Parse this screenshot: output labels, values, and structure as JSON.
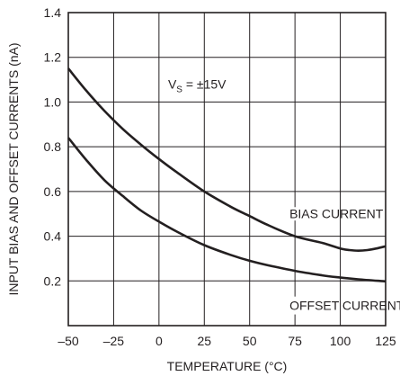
{
  "chart_data": {
    "type": "line",
    "xlabel": "TEMPERATURE (°C)",
    "ylabel": "INPUT BIAS AND OFFSET CURRENTS (nA)",
    "xlim": [
      -50,
      125
    ],
    "ylim": [
      0,
      1.4
    ],
    "x_ticks": [
      -50,
      -25,
      0,
      25,
      50,
      75,
      100,
      125
    ],
    "x_tick_labels": [
      "–50",
      "–25",
      "0",
      "25",
      "50",
      "75",
      "100",
      "125"
    ],
    "y_ticks": [
      0.2,
      0.4,
      0.6,
      0.8,
      1.0,
      1.2,
      1.4
    ],
    "y_tick_labels": [
      "0.2",
      "0.4",
      "0.6",
      "0.8",
      "1.0",
      "1.2",
      "1.4"
    ],
    "grid": true,
    "annotation": {
      "prefix": "V",
      "subscript": "S",
      "suffix": " = ±15V",
      "x": 5,
      "y": 1.08
    },
    "series": [
      {
        "name": "BIAS CURRENT",
        "label_x": 72,
        "label_y": 0.5,
        "x": [
          -50,
          -40,
          -30,
          -20,
          -10,
          0,
          10,
          25,
          40,
          50,
          60,
          75,
          90,
          100,
          105,
          110,
          115,
          120,
          125
        ],
        "values": [
          1.15,
          1.05,
          0.96,
          0.88,
          0.81,
          0.745,
          0.685,
          0.6,
          0.53,
          0.49,
          0.45,
          0.4,
          0.37,
          0.345,
          0.338,
          0.335,
          0.338,
          0.345,
          0.355
        ]
      },
      {
        "name": "OFFSET CURRENT",
        "label_x": 72,
        "label_y": 0.09,
        "x": [
          -50,
          -40,
          -30,
          -20,
          -10,
          0,
          10,
          25,
          40,
          50,
          60,
          75,
          90,
          100,
          110,
          125
        ],
        "values": [
          0.84,
          0.74,
          0.65,
          0.58,
          0.515,
          0.465,
          0.42,
          0.36,
          0.315,
          0.29,
          0.27,
          0.245,
          0.225,
          0.215,
          0.207,
          0.198
        ]
      }
    ]
  }
}
